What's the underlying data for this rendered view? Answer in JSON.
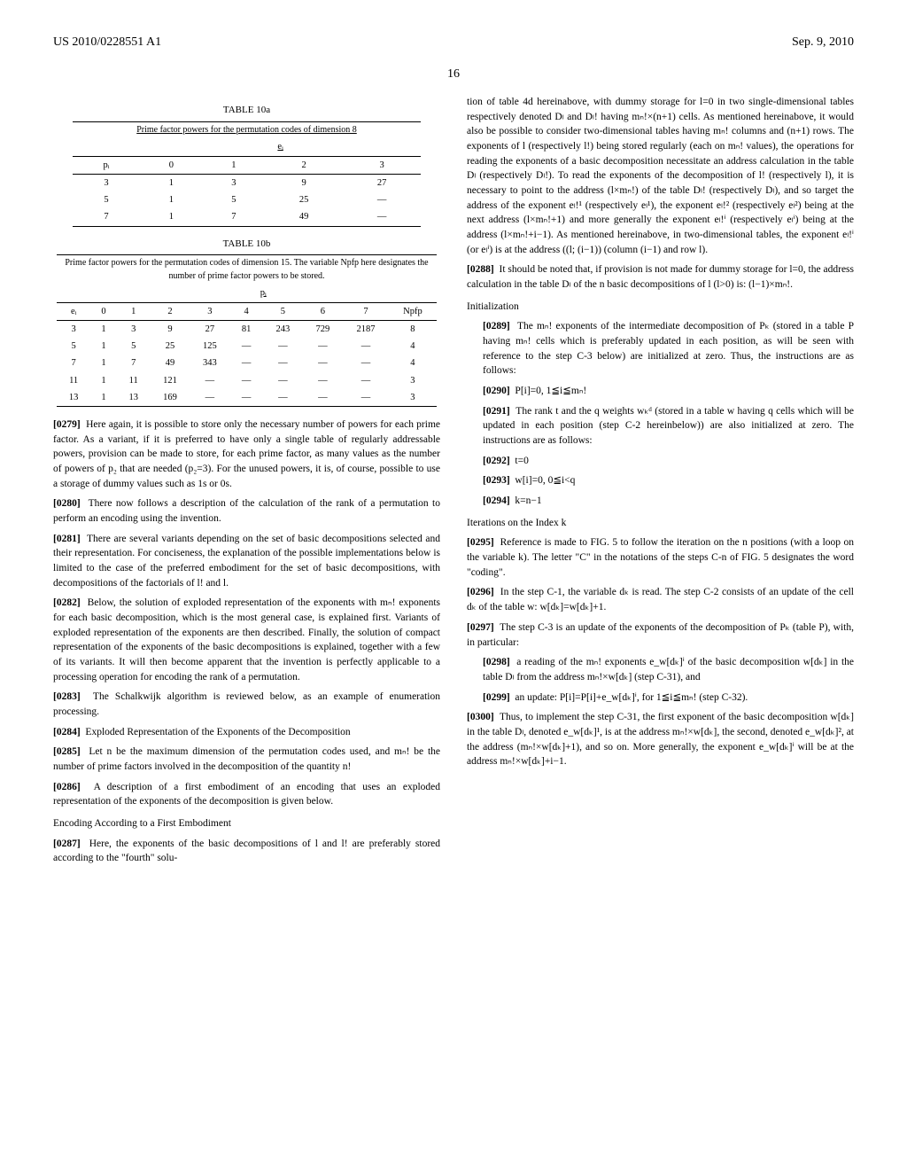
{
  "header": {
    "left": "US 2010/0228551 A1",
    "right": "Sep. 9, 2010"
  },
  "pagenum": "16",
  "table10a": {
    "title": "TABLE 10a",
    "caption": "Prime factor powers for the permutation codes of dimension 8",
    "ei_header": "eᵢ",
    "pi_header": "pᵢ",
    "cols": [
      "0",
      "1",
      "2",
      "3"
    ],
    "rows": [
      [
        "3",
        "1",
        "3",
        "9",
        "27"
      ],
      [
        "5",
        "1",
        "5",
        "25",
        "—"
      ],
      [
        "7",
        "1",
        "7",
        "49",
        "—"
      ]
    ]
  },
  "table10b": {
    "title": "TABLE 10b",
    "caption": "Prime factor powers for the permutation codes of dimension 15. The variable Npfp here designates the number of prime factor powers to be stored.",
    "pi_header": "pᵢ",
    "ei_header": "eᵢ",
    "cols": [
      "0",
      "1",
      "2",
      "3",
      "4",
      "5",
      "6",
      "7",
      "Npfp"
    ],
    "rows": [
      [
        "3",
        "1",
        "3",
        "9",
        "27",
        "81",
        "243",
        "729",
        "2187",
        "8"
      ],
      [
        "5",
        "1",
        "5",
        "25",
        "125",
        "—",
        "—",
        "—",
        "—",
        "4"
      ],
      [
        "7",
        "1",
        "7",
        "49",
        "343",
        "—",
        "—",
        "—",
        "—",
        "4"
      ],
      [
        "11",
        "1",
        "11",
        "121",
        "—",
        "—",
        "—",
        "—",
        "—",
        "3"
      ],
      [
        "13",
        "1",
        "13",
        "169",
        "—",
        "—",
        "—",
        "—",
        "—",
        "3"
      ]
    ]
  },
  "left": {
    "p0279": "Here again, it is possible to store only the necessary number of powers for each prime factor. As a variant, if it is preferred to have only a single table of regularly addressable powers, provision can be made to store, for each prime factor, as many values as the number of powers of p₂ that are needed (p₂=3). For the unused powers, it is, of course, possible to use a storage of dummy values such as 1s or 0s.",
    "p0280": "There now follows a description of the calculation of the rank of a permutation to perform an encoding using the invention.",
    "p0281": "There are several variants depending on the set of basic decompositions selected and their representation. For conciseness, the explanation of the possible implementations below is limited to the case of the preferred embodiment for the set of basic decompositions, with decompositions of the factorials of l! and l.",
    "p0282": "Below, the solution of exploded representation of the exponents with mₙ! exponents for each basic decomposition, which is the most general case, is explained first. Variants of exploded representation of the exponents are then described. Finally, the solution of compact representation of the exponents of the basic decompositions is explained, together with a few of its variants. It will then become apparent that the invention is perfectly applicable to a processing operation for encoding the rank of a permutation.",
    "p0283": "The Schalkwijk algorithm is reviewed below, as an example of enumeration processing.",
    "p0284": "Exploded Representation of the Exponents of the Decomposition",
    "p0285": "Let n be the maximum dimension of the permutation codes used, and mₙ! be the number of prime factors involved in the decomposition of the quantity n!",
    "p0286": "A description of a first embodiment of an encoding that uses an exploded representation of the exponents of the decomposition is given below.",
    "encHead": "Encoding According to a First Embodiment",
    "p0287": "Here, the exponents of the basic decompositions of l and l! are preferably stored according to the \"fourth\" solu-"
  },
  "right": {
    "cont": "tion of table 4d hereinabove, with dummy storage for l=0 in two single-dimensional tables respectively denoted Dₗ and Dₗ! having mₙ!×(n+1) cells. As mentioned hereinabove, it would also be possible to consider two-dimensional tables having mₙ! columns and (n+1) rows. The exponents of l (respectively l!) being stored regularly (each on mₙ! values), the operations for reading the exponents of a basic decomposition necessitate an address calculation in the table Dₗ (respectively Dₗ!). To read the exponents of the decomposition of l! (respectively l), it is necessary to point to the address (l×mₙ!) of the table Dₗ! (respectively Dₗ), and so target the address of the exponent eₗ!¹ (respectively eₗ¹), the exponent eₗ!² (respectively eₗ²) being at the next address (l×mₙ!+1) and more generally the exponent eₗ!ⁱ (respectively eₗⁱ) being at the address (l×mₙ!+i−1). As mentioned hereinabove, in two-dimensional tables, the exponent eₗ!ⁱ (or eₗⁱ) is at the address ((l; (i−1)) (column (i−1) and row l).",
    "p0288": "It should be noted that, if provision is not made for dummy storage for l=0, the address calculation in the table Dₗ of the n basic decompositions of l (l>0) is: (l−1)×mₙ!.",
    "initHead": "Initialization",
    "p0289": "The mₙ! exponents of the intermediate decomposition of Pₖ (stored in a table P having mₙ! cells which is preferably updated in each position, as will be seen with reference to the step C-3 below) are initialized at zero. Thus, the instructions are as follows:",
    "p0290": "P[i]=0, 1≦i≦mₙ!",
    "p0291": "The rank t and the q weights wₖᵈ (stored in a table w having q cells which will be updated in each position (step C-2 hereinbelow)) are also initialized at zero. The instructions are as follows:",
    "p0292": "t=0",
    "p0293": "w[i]=0, 0≦i<q",
    "p0294": "k=n−1",
    "iterHead": "Iterations on the Index k",
    "p0295": "Reference is made to FIG. 5 to follow the iteration on the n positions (with a loop on the variable k). The letter \"C\" in the notations of the steps C-n of FIG. 5 designates the word \"coding\".",
    "p0296": "In the step C-1, the variable dₖ is read. The step C-2 consists of an update of the cell dₖ of the table w: w[dₖ]=w[dₖ]+1.",
    "p0297": "The step C-3 is an update of the exponents of the decomposition of Pₖ (table P), with, in particular:",
    "p0298": "a reading of the mₙ! exponents e_w[dₖ]ⁱ of the basic decomposition w[dₖ] in the table Dₗ from the address mₙ!×w[dₖ] (step C-31), and",
    "p0299": "an update: P[i]=P[i]+e_w[dₖ]ⁱ, for 1≦i≦mₙ! (step C-32).",
    "p0300": "Thus, to implement the step C-31, the first exponent of the basic decomposition w[dₖ] in the table Dₗ, denoted e_w[dₖ]¹, is at the address mₙ!×w[dₖ], the second, denoted e_w[dₖ]², at the address (mₙ!×w[dₖ]+1), and so on. More generally, the exponent e_w[dₖ]ⁱ will be at the address mₙ!×w[dₖ]+i−1."
  }
}
